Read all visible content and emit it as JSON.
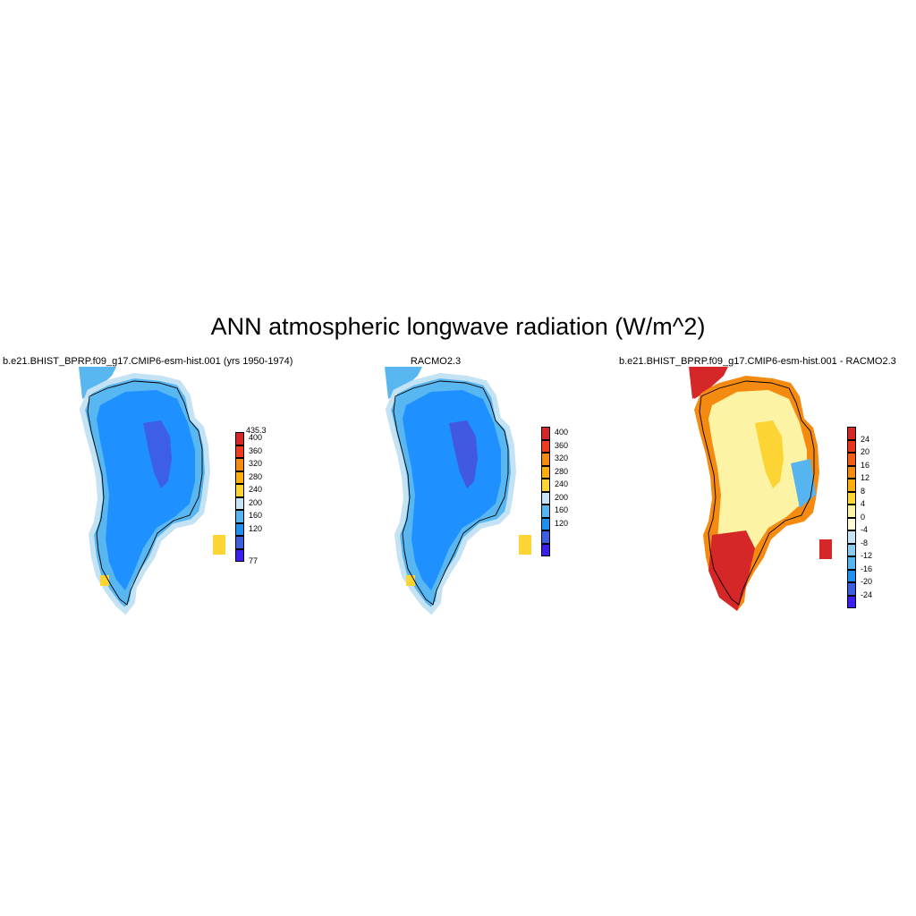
{
  "title": "ANN atmospheric longwave radiation (W/m^2)",
  "panels": [
    {
      "title": "b.e21.BHIST_BPRP.f09_g17.CMIP6-esm-hist.001 (yrs 1950-1974)",
      "colorbar": {
        "top_label": "435.3",
        "bottom_label": "77",
        "labels": [
          "400",
          "360",
          "320",
          "280",
          "240",
          "200",
          "160",
          "120"
        ],
        "colors": [
          "#d62728",
          "#f03b20",
          "#f58a10",
          "#fdae0c",
          "#fcd535",
          "#c6e4f3",
          "#56b4ee",
          "#1f8ff0",
          "#3c5fe0",
          "#3b1ff0"
        ]
      },
      "field": {
        "interior": "#1e90ff",
        "core": "#3d5ee6",
        "margin": "#58b6f0",
        "edge": "#c3e2f4",
        "warm_spots": "#fcd535"
      }
    },
    {
      "title": "RACMO2.3",
      "colorbar": {
        "top_label": "",
        "bottom_label": "",
        "labels": [
          "400",
          "360",
          "320",
          "280",
          "240",
          "200",
          "160",
          "120"
        ],
        "colors": [
          "#d62728",
          "#f03b20",
          "#f58a10",
          "#fdae0c",
          "#fcd535",
          "#c6e4f3",
          "#56b4ee",
          "#1f8ff0",
          "#3c5fe0",
          "#3b1ff0"
        ]
      },
      "field": {
        "interior": "#1e90ff",
        "core": "#4059e0",
        "margin": "#58b6f0",
        "edge": "#c3e2f4",
        "warm_spots": "#fcd535"
      }
    },
    {
      "title": "b.e21.BHIST_BPRP.f09_g17.CMIP6-esm-hist.001 - RACMO2.3",
      "colorbar": {
        "top_label": "",
        "bottom_label": "",
        "labels": [
          "24",
          "20",
          "16",
          "12",
          "8",
          "4",
          "0",
          "-4",
          "-8",
          "-12",
          "-16",
          "-20",
          "-24"
        ],
        "colors": [
          "#d62728",
          "#e8341c",
          "#f25c16",
          "#f58a10",
          "#fdae0c",
          "#fcd535",
          "#fdf3a5",
          "#fffbd8",
          "#c6e4f3",
          "#8fcaf1",
          "#56b4ee",
          "#1f8ff0",
          "#3c5fe0",
          "#3b1ff0"
        ]
      },
      "field": {
        "interior": "#fdf3a5",
        "core": "#fcd535",
        "margin": "#f58a10",
        "edge": "#d62728",
        "cool": "#56b4ee"
      }
    }
  ]
}
